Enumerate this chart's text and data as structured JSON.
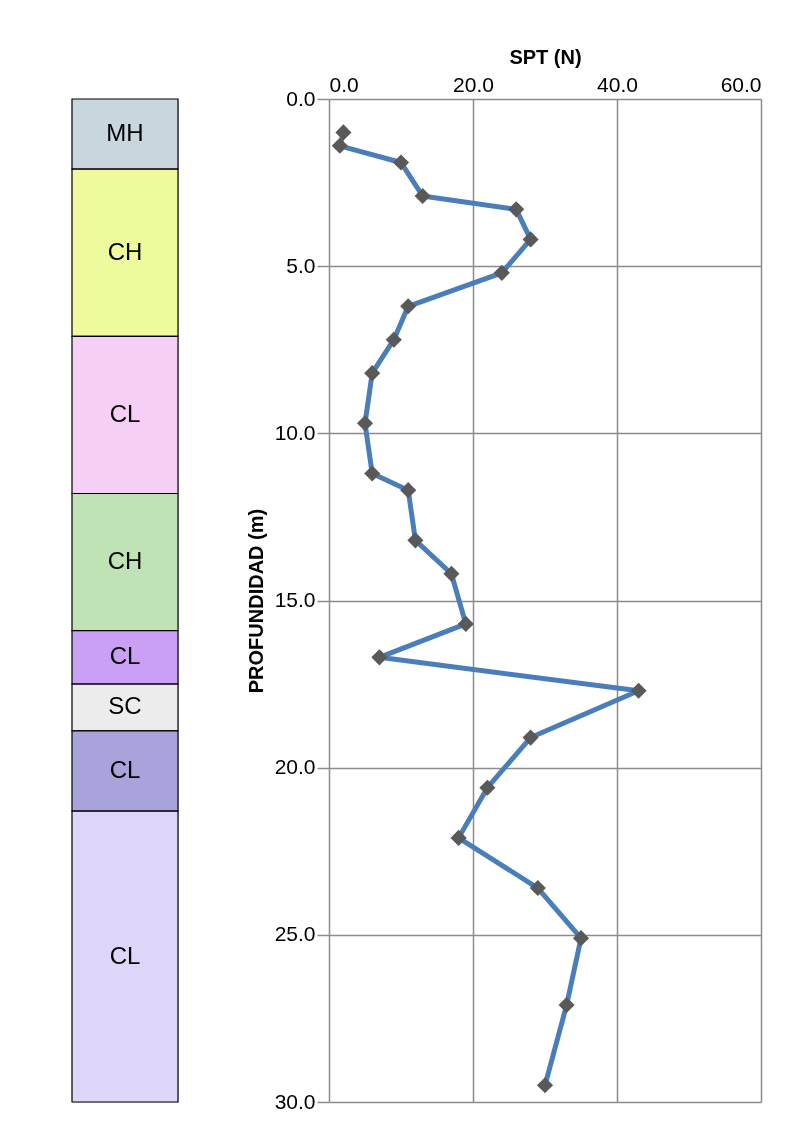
{
  "chart_data": [
    {
      "type": "bar",
      "stacked": true,
      "categories": [
        null
      ],
      "ylim": [
        30,
        0
      ],
      "tick_labels": false,
      "legend": false,
      "series": [
        {
          "name": "MH",
          "color": "#c9d6de",
          "values": [
            2.1
          ]
        },
        {
          "name": "CH",
          "color": "#eefa9c",
          "values": [
            5.0
          ]
        },
        {
          "name": "CL",
          "color": "#f6cff7",
          "values": [
            4.7
          ]
        },
        {
          "name": "CH",
          "color": "#bfe3b5",
          "values": [
            4.1
          ]
        },
        {
          "name": "CL",
          "color": "#c9a0f5",
          "values": [
            1.6
          ]
        },
        {
          "name": "SC",
          "color": "#ececec",
          "values": [
            1.4
          ]
        },
        {
          "name": "CL",
          "color": "#a9a3dc",
          "values": [
            2.4
          ]
        },
        {
          "name": "CL",
          "color": "#ddd6f8",
          "values": [
            8.7
          ]
        }
      ]
    },
    {
      "type": "line",
      "orientation": "horizontal",
      "xlabel": "SPT (N)",
      "ylabel": "PROFUNDIDAD (m)",
      "xlim": [
        0,
        60
      ],
      "xticks": [
        {
          "value": 0,
          "label": "0.0"
        },
        {
          "value": 20,
          "label": "20.0"
        },
        {
          "value": 40,
          "label": "40.0"
        },
        {
          "value": 60,
          "label": "60.0"
        }
      ],
      "ylim": [
        30,
        0
      ],
      "yticks": [
        {
          "value": 0,
          "label": "0.0"
        },
        {
          "value": 5,
          "label": "5.0"
        },
        {
          "value": 10,
          "label": "10.0"
        },
        {
          "value": 15,
          "label": "15.0"
        },
        {
          "value": 20,
          "label": "20.0"
        },
        {
          "value": 25,
          "label": "25.0"
        },
        {
          "value": 30,
          "label": "30.0"
        }
      ],
      "grid": true,
      "marker": "diamond",
      "line_style": "solid",
      "x": [
        1.0,
        1.4,
        1.9,
        2.9,
        3.3,
        4.2,
        5.2,
        6.2,
        7.2,
        8.2,
        9.7,
        11.2,
        11.7,
        13.2,
        14.2,
        15.7,
        16.7,
        17.7,
        19.1,
        20.6,
        22.1,
        23.6,
        25.1,
        27.1,
        29.5
      ],
      "series": [
        {
          "color": "#4a7ebb",
          "values": [
            2,
            1.5,
            10,
            13,
            26,
            28,
            24,
            11,
            9,
            6,
            5,
            6,
            11,
            12,
            17,
            19,
            7,
            43,
            28,
            22,
            18,
            29,
            35,
            33,
            30
          ]
        }
      ]
    }
  ]
}
